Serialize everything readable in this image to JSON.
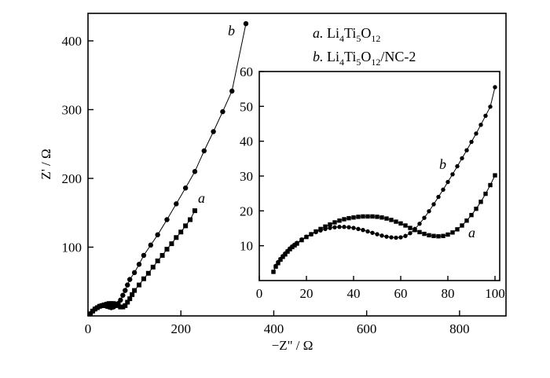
{
  "chart_data": [
    {
      "type": "scatter",
      "xlabel": "−Z\" / Ω",
      "ylabel": "Z' / Ω",
      "xlim": [
        0,
        900
      ],
      "ylim": [
        0,
        440
      ],
      "x_ticks": [
        0,
        200,
        400,
        600,
        800
      ],
      "y_ticks": [
        100,
        200,
        300,
        400
      ],
      "x_tick_labels": [
        "0",
        "200",
        "400",
        "600",
        "800"
      ],
      "y_tick_labels": [
        "100",
        "200",
        "300",
        "400"
      ],
      "legend": {
        "position": "top-right",
        "entries": [
          {
            "key": "a",
            "prefix": "a. ",
            "base": "Li",
            "s1": "4",
            "m1": "Ti",
            "s2": "5",
            "m2": "O",
            "s3": "12",
            "suffix": ""
          },
          {
            "key": "b",
            "prefix": "b. ",
            "base": "Li",
            "s1": "4",
            "m1": "Ti",
            "s2": "5",
            "m2": "O",
            "s3": "12",
            "suffix": "/NC-2"
          }
        ]
      },
      "series": [
        {
          "name": "a",
          "marker": "square",
          "x": [
            5,
            10,
            15,
            20,
            25,
            30,
            35,
            40,
            45,
            50,
            55,
            60,
            65,
            70,
            75,
            80,
            85,
            90,
            95,
            100,
            110,
            120,
            130,
            140,
            150,
            160,
            170,
            180,
            190,
            200,
            210,
            220,
            230
          ],
          "y": [
            3,
            7,
            10,
            12,
            14,
            15,
            16,
            17,
            18,
            18,
            18,
            17,
            15,
            13,
            13,
            15,
            20,
            25,
            31,
            37,
            45,
            54,
            62,
            71,
            80,
            88,
            97,
            105,
            114,
            122,
            131,
            140,
            153
          ]
        },
        {
          "name": "b",
          "marker": "circle",
          "x": [
            5,
            10,
            15,
            20,
            25,
            30,
            35,
            40,
            45,
            50,
            55,
            60,
            65,
            70,
            75,
            80,
            85,
            90,
            100,
            110,
            120,
            135,
            150,
            170,
            190,
            210,
            230,
            250,
            270,
            290,
            310,
            340
          ],
          "y": [
            3,
            7,
            10,
            12,
            14,
            15,
            15,
            14,
            13,
            12,
            13,
            15,
            18,
            23,
            30,
            37,
            45,
            53,
            63,
            75,
            88,
            103,
            118,
            140,
            163,
            186,
            210,
            240,
            268,
            297,
            327,
            425
          ]
        }
      ]
    },
    {
      "type": "scatter",
      "role": "inset",
      "xlim": [
        0,
        102
      ],
      "ylim": [
        0,
        60
      ],
      "x_ticks": [
        0,
        20,
        40,
        60,
        80,
        100
      ],
      "y_ticks": [
        10,
        20,
        30,
        40,
        50,
        60
      ],
      "x_tick_labels": [
        "0",
        "20",
        "40",
        "60",
        "80",
        "100"
      ],
      "y_tick_labels": [
        "10",
        "20",
        "30",
        "40",
        "50",
        "60"
      ],
      "series": [
        {
          "name": "a",
          "marker": "square",
          "x": [
            6,
            7,
            8,
            9,
            10,
            11,
            12,
            13,
            14,
            15,
            16,
            18,
            20,
            22,
            24,
            26,
            28,
            30,
            32,
            34,
            36,
            38,
            40,
            42,
            44,
            46,
            48,
            50,
            52,
            54,
            56,
            58,
            60,
            62,
            64,
            66,
            68,
            70,
            72,
            74,
            76,
            78,
            80,
            82,
            84,
            86,
            88,
            90,
            92,
            94,
            96,
            98,
            100
          ],
          "y": [
            2.5,
            4,
            5,
            6,
            6.8,
            7.5,
            8.3,
            9,
            9.6,
            10.1,
            10.6,
            11.6,
            12.5,
            13.3,
            14.1,
            14.8,
            15.5,
            16.1,
            16.7,
            17.2,
            17.6,
            17.9,
            18.1,
            18.3,
            18.4,
            18.4,
            18.4,
            18.3,
            18.1,
            17.8,
            17.4,
            16.9,
            16.4,
            15.8,
            15.1,
            14.5,
            13.9,
            13.4,
            13,
            12.8,
            12.7,
            12.8,
            13.2,
            13.8,
            14.7,
            15.8,
            17.2,
            18.8,
            20.6,
            22.6,
            24.9,
            27.4,
            30.2
          ]
        },
        {
          "name": "b",
          "marker": "circle",
          "x": [
            6,
            7,
            8,
            9,
            10,
            11,
            12,
            13,
            14,
            15,
            16,
            18,
            20,
            22,
            24,
            26,
            28,
            30,
            32,
            34,
            36,
            38,
            40,
            42,
            44,
            46,
            48,
            50,
            52,
            54,
            56,
            58,
            60,
            62,
            64,
            66,
            68,
            70,
            72,
            74,
            76,
            78,
            80,
            82,
            84,
            86,
            88,
            90,
            92,
            94,
            96,
            98,
            100
          ],
          "y": [
            2.5,
            4.2,
            5.3,
            6.2,
            7,
            7.8,
            8.5,
            9.2,
            9.8,
            10.3,
            10.8,
            11.8,
            12.6,
            13.3,
            13.9,
            14.4,
            14.8,
            15.1,
            15.3,
            15.4,
            15.4,
            15.3,
            15.1,
            14.8,
            14.5,
            14.1,
            13.7,
            13.3,
            12.9,
            12.6,
            12.4,
            12.3,
            12.4,
            12.8,
            13.6,
            14.8,
            16.3,
            18,
            19.9,
            21.9,
            24,
            26.1,
            28.3,
            30.5,
            32.8,
            35.1,
            37.4,
            39.8,
            42.2,
            44.7,
            47.3,
            49.9,
            55.5
          ]
        }
      ]
    }
  ]
}
